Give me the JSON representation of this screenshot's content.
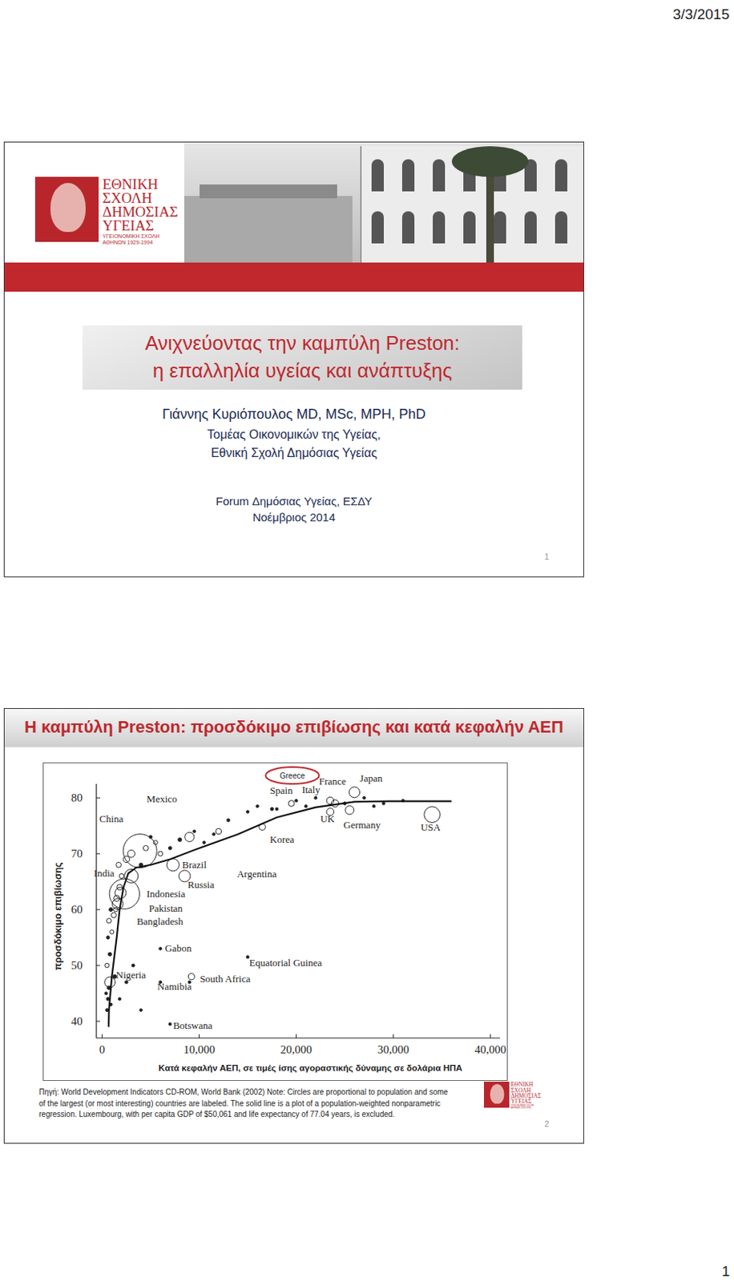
{
  "header": {
    "date": "3/3/2015"
  },
  "slides": [
    {
      "logo": {
        "lines": [
          "ΕΘΝΙΚΗ",
          "ΣΧΟΛΗ",
          "ΔΗΜΟΣΙΑΣ",
          "ΥΓΕΙΑΣ"
        ],
        "sub": [
          "ΥΓΕΙΟΝΟΜΙΚΗ ΣΧΟΛΗ",
          "ΑΘΗΝΩΝ 1929-1994"
        ]
      },
      "title": [
        "Ανιχνεύοντας την καμπύλη Preston:",
        "η επαλληλία υγείας και ανάπτυξης"
      ],
      "author": "Γιάννης Κυριόπουλος MD, MSc, MPH, PhD",
      "affiliation": [
        "Τομέας Οικονομικών της Υγείας,",
        "Εθνική Σχολή Δημόσιας Υγείας"
      ],
      "event": [
        "Forum Δημόσιας Υγείας, ΕΣΔΥ",
        "Νοέμβριος 2014"
      ],
      "number": 1
    },
    {
      "source": [
        "Πηγή: World Development Indicators CD-ROM, World Bank (2002) Note: Circles are proportional to population and some",
        "of the largest (or most interesting) countries are labeled. The solid line is a plot of a population-weighted nonparametric",
        "regression. Luxembourg, with per capita GDP of $50,061 and life expectancy of 77.04 years, is excluded."
      ],
      "number": 2
    }
  ],
  "chart_data": {
    "type": "scatter",
    "title": "Η καμπύλη Preston: προσδόκιμο επιβίωσης και κατά κεφαλήν ΑΕΠ",
    "x_label": "Κατά κεφαλήν ΑΕΠ, σε τιμές ίσης αγοραστικής δύναμης σε δολάρια ΗΠΑ",
    "y_label": "προσδόκιμο επιβίωσης",
    "xlim": [
      -600,
      41000
    ],
    "ylim": [
      37,
      82.5
    ],
    "xticks": [
      0,
      {
        "value": 10000,
        "label": "10,000"
      },
      {
        "value": 20000,
        "label": "20,000"
      },
      {
        "value": 30000,
        "label": "30,000"
      },
      {
        "value": 40000,
        "label": "40,000"
      }
    ],
    "yticks": [
      40,
      50,
      60,
      70,
      80
    ],
    "grid": false,
    "series": [
      {
        "type": "scatter",
        "marker": "circle",
        "labels": [
          "USA",
          "Japan",
          "France",
          "Italy",
          "Spain",
          null,
          "UK",
          "Germany",
          "Korea",
          "Argentina",
          "Mexico",
          "China",
          "Brazil",
          "Russia",
          "India",
          "Indonesia",
          "Pakistan",
          "Bangladesh",
          "Gabon",
          "Equatorial Guinea",
          "South Africa",
          "Namibia",
          "Nigeria",
          "Botswana",
          null,
          null,
          null,
          null,
          null,
          null,
          null,
          null,
          null,
          null,
          null,
          null,
          null,
          null,
          null,
          null,
          null,
          null,
          null,
          null,
          null,
          null,
          null,
          null,
          null,
          null,
          null,
          null,
          null,
          null,
          null,
          null,
          null,
          null,
          null,
          null,
          null,
          null,
          null,
          null,
          null,
          null,
          null,
          null,
          null,
          null,
          null,
          null,
          null,
          null,
          null
        ],
        "x": [
          34000,
          26000,
          24000,
          23500,
          19500,
          17500,
          23500,
          25500,
          16500,
          12000,
          9000,
          3900,
          7300,
          8500,
          2300,
          3000,
          1900,
          1600,
          6000,
          15000,
          9200,
          6000,
          800,
          7000,
          500,
          600,
          400,
          700,
          900,
          500,
          800,
          600,
          1000,
          700,
          1200,
          1400,
          900,
          1500,
          1800,
          2000,
          1700,
          2500,
          3000,
          4500,
          5500,
          6000,
          4000,
          7000,
          5000,
          8000,
          9500,
          10500,
          11500,
          13000,
          15000,
          16000,
          18000,
          20000,
          21000,
          22000,
          25000,
          27000,
          28000,
          29000,
          31000,
          1300,
          2500,
          3200,
          4000,
          1800,
          9000
        ],
        "values": [
          77,
          81,
          79,
          79.5,
          79,
          78,
          77.5,
          77.8,
          74.8,
          74,
          73,
          70.5,
          68,
          66,
          62.8,
          66,
          63,
          61,
          53,
          51.5,
          48,
          47,
          47,
          39.5,
          42,
          44,
          45,
          46,
          43,
          50,
          52,
          55,
          56,
          58,
          59,
          60,
          60,
          62,
          64,
          66,
          68,
          69,
          70,
          71,
          72,
          70,
          68,
          71,
          73,
          72.5,
          74,
          72,
          73.5,
          76,
          77.5,
          78.5,
          78,
          79.5,
          78.5,
          80,
          79,
          80,
          78.5,
          79,
          79.5,
          48,
          47,
          50,
          42,
          44,
          47
        ],
        "sizes": [
          280,
          127,
          59,
          58,
          40,
          11,
          60,
          82,
          47,
          37,
          98,
          1260,
          170,
          146,
          1010,
          210,
          138,
          130,
          1.2,
          0.5,
          43,
          1.8,
          125,
          1.6,
          10,
          12,
          8,
          15,
          9,
          20,
          14,
          11,
          18,
          25,
          30,
          20,
          15,
          40,
          35,
          25,
          30,
          45,
          60,
          30,
          20,
          25,
          15,
          12,
          10,
          15,
          8,
          5,
          6,
          10,
          8,
          5,
          6,
          7,
          5,
          4,
          10,
          5,
          8,
          4,
          4,
          15,
          10,
          10,
          8,
          8,
          3
        ]
      },
      {
        "type": "line",
        "line_style": "solid",
        "x": [
          670,
          700,
          1000,
          1500,
          1800,
          2200,
          2700,
          3500,
          5000,
          7000,
          10000,
          14000,
          18000,
          22000,
          26000,
          30000,
          36000
        ],
        "values": [
          39,
          42,
          48,
          55,
          60,
          64,
          66.5,
          67.5,
          68,
          69,
          71,
          73.5,
          76.5,
          78.3,
          79.3,
          79.4,
          79.4
        ]
      }
    ],
    "annotations": [
      {
        "text": "Greece",
        "x": 19600,
        "y": 83.6
      }
    ]
  },
  "footer": {
    "page": 1
  }
}
